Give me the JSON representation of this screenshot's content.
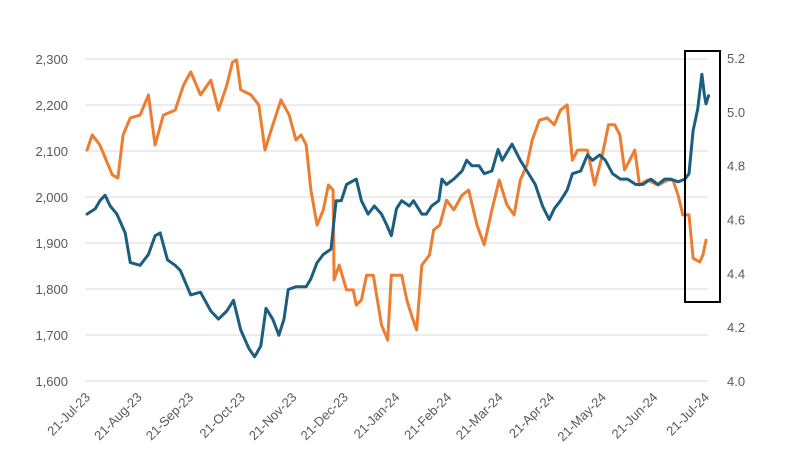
{
  "chart_data": {
    "type": "line",
    "title": "",
    "xlabel": "",
    "ylabel": "",
    "x_unit": "months since 21-Jul-23",
    "x_tick_labels": [
      "21-Jul-23",
      "21-Aug-23",
      "21-Sep-23",
      "21-Oct-23",
      "21-Nov-23",
      "21-Dec-23",
      "21-Jan-24",
      "21-Feb-24",
      "21-Mar-24",
      "21-Apr-24",
      "21-May-24",
      "21-Jun-24",
      "21-Jul-24"
    ],
    "xlim": [
      0,
      12
    ],
    "left_axis": {
      "ylim": [
        1600,
        2300
      ],
      "ticks": [
        "1,600",
        "1,700",
        "1,800",
        "1,900",
        "2,000",
        "2,100",
        "2,200",
        "2,300"
      ],
      "tick_values": [
        1600,
        1700,
        1800,
        1900,
        2000,
        2100,
        2200,
        2300
      ]
    },
    "right_axis": {
      "ylim": [
        4.0,
        5.2
      ],
      "ticks": [
        "4.0",
        "4.2",
        "4.4",
        "4.6",
        "4.8",
        "5.0",
        "5.2"
      ],
      "tick_values": [
        4.0,
        4.2,
        4.4,
        4.6,
        4.8,
        5.0,
        5.2
      ]
    },
    "grid": true,
    "legend": "none",
    "annotation": {
      "type": "highlight-box",
      "x_range": [
        11.7,
        12.2
      ],
      "description_color": "#000000"
    },
    "series": [
      {
        "name": "orange-series",
        "axis": "left",
        "color": "#ED7D31",
        "x": [
          0,
          0.1,
          0.25,
          0.49,
          0.6,
          0.7,
          0.84,
          1.03,
          1.19,
          1.32,
          1.48,
          1.71,
          1.87,
          2.01,
          2.2,
          2.4,
          2.55,
          2.71,
          2.82,
          2.9,
          2.98,
          3.18,
          3.33,
          3.45,
          3.57,
          3.76,
          3.92,
          4.05,
          4.15,
          4.25,
          4.34,
          4.46,
          4.58,
          4.68,
          4.77,
          4.79,
          4.89,
          5.03,
          5.16,
          5.22,
          5.32,
          5.42,
          5.55,
          5.71,
          5.83,
          5.9,
          6.1,
          6.2,
          6.29,
          6.39,
          6.49,
          6.64,
          6.72,
          6.84,
          6.97,
          7.11,
          7.27,
          7.4,
          7.56,
          7.7,
          7.85,
          7.99,
          8.14,
          8.28,
          8.4,
          8.53,
          8.63,
          8.77,
          8.92,
          9.06,
          9.18,
          9.31,
          9.41,
          9.51,
          9.7,
          9.84,
          9.99,
          10.11,
          10.23,
          10.33,
          10.42,
          10.52,
          10.62,
          10.71,
          10.87,
          11.07,
          11.26,
          11.36,
          11.46,
          11.55,
          11.67,
          11.75,
          11.88,
          11.94,
          12.0
        ],
        "values": [
          2102,
          2135,
          2113,
          2048,
          2041,
          2135,
          2172,
          2178,
          2222,
          2113,
          2178,
          2189,
          2243,
          2272,
          2222,
          2254,
          2189,
          2243,
          2293,
          2298,
          2233,
          2222,
          2200,
          2102,
          2146,
          2211,
          2178,
          2124,
          2135,
          2113,
          2015,
          1939,
          1972,
          2026,
          2015,
          1820,
          1852,
          1798,
          1798,
          1765,
          1776,
          1830,
          1830,
          1722,
          1689,
          1830,
          1830,
          1776,
          1743,
          1711,
          1852,
          1874,
          1928,
          1939,
          1993,
          1972,
          2004,
          2015,
          1939,
          1896,
          1972,
          2037,
          1983,
          1961,
          2037,
          2070,
          2124,
          2167,
          2172,
          2157,
          2189,
          2200,
          2080,
          2102,
          2102,
          2026,
          2091,
          2157,
          2157,
          2135,
          2059,
          2080,
          2102,
          2026,
          2037,
          2026,
          2037,
          2037,
          2004,
          1961,
          1961,
          1867,
          1859,
          1874,
          1906
        ]
      },
      {
        "name": "blue-series",
        "axis": "right",
        "color": "#1B5E80",
        "x": [
          0,
          0.16,
          0.25,
          0.35,
          0.45,
          0.58,
          0.74,
          0.84,
          1.03,
          1.19,
          1.32,
          1.42,
          1.56,
          1.71,
          1.81,
          2.01,
          2.2,
          2.4,
          2.55,
          2.71,
          2.84,
          2.98,
          3.14,
          3.25,
          3.37,
          3.47,
          3.6,
          3.72,
          3.82,
          3.9,
          4.05,
          4.25,
          4.34,
          4.46,
          4.58,
          4.73,
          4.83,
          4.93,
          5.03,
          5.22,
          5.32,
          5.45,
          5.57,
          5.71,
          5.81,
          5.9,
          6.0,
          6.1,
          6.25,
          6.33,
          6.49,
          6.58,
          6.68,
          6.82,
          6.88,
          6.97,
          7.11,
          7.27,
          7.36,
          7.46,
          7.6,
          7.7,
          7.85,
          7.97,
          8.05,
          8.24,
          8.4,
          8.53,
          8.69,
          8.83,
          8.96,
          9.06,
          9.18,
          9.31,
          9.41,
          9.57,
          9.7,
          9.8,
          9.94,
          10.05,
          10.19,
          10.34,
          10.48,
          10.64,
          10.77,
          10.93,
          11.07,
          11.2,
          11.32,
          11.46,
          11.59,
          11.67,
          11.75,
          11.84,
          11.92,
          11.97,
          12.0,
          12.05
        ],
        "values": [
          4.62,
          4.64,
          4.67,
          4.69,
          4.65,
          4.62,
          4.55,
          4.44,
          4.43,
          4.47,
          4.54,
          4.55,
          4.45,
          4.43,
          4.41,
          4.32,
          4.33,
          4.26,
          4.23,
          4.26,
          4.3,
          4.19,
          4.12,
          4.09,
          4.13,
          4.27,
          4.23,
          4.17,
          4.23,
          4.34,
          4.35,
          4.35,
          4.38,
          4.44,
          4.47,
          4.49,
          4.67,
          4.67,
          4.73,
          4.75,
          4.67,
          4.62,
          4.65,
          4.62,
          4.58,
          4.54,
          4.64,
          4.67,
          4.65,
          4.67,
          4.62,
          4.62,
          4.65,
          4.67,
          4.75,
          4.73,
          4.75,
          4.78,
          4.82,
          4.8,
          4.8,
          4.77,
          4.78,
          4.86,
          4.82,
          4.88,
          4.82,
          4.78,
          4.73,
          4.65,
          4.6,
          4.64,
          4.67,
          4.71,
          4.77,
          4.78,
          4.84,
          4.82,
          4.84,
          4.82,
          4.77,
          4.75,
          4.75,
          4.73,
          4.73,
          4.75,
          4.73,
          4.75,
          4.75,
          4.74,
          4.75,
          4.77,
          4.93,
          5.01,
          5.14,
          5.06,
          5.03,
          5.06
        ]
      }
    ]
  }
}
